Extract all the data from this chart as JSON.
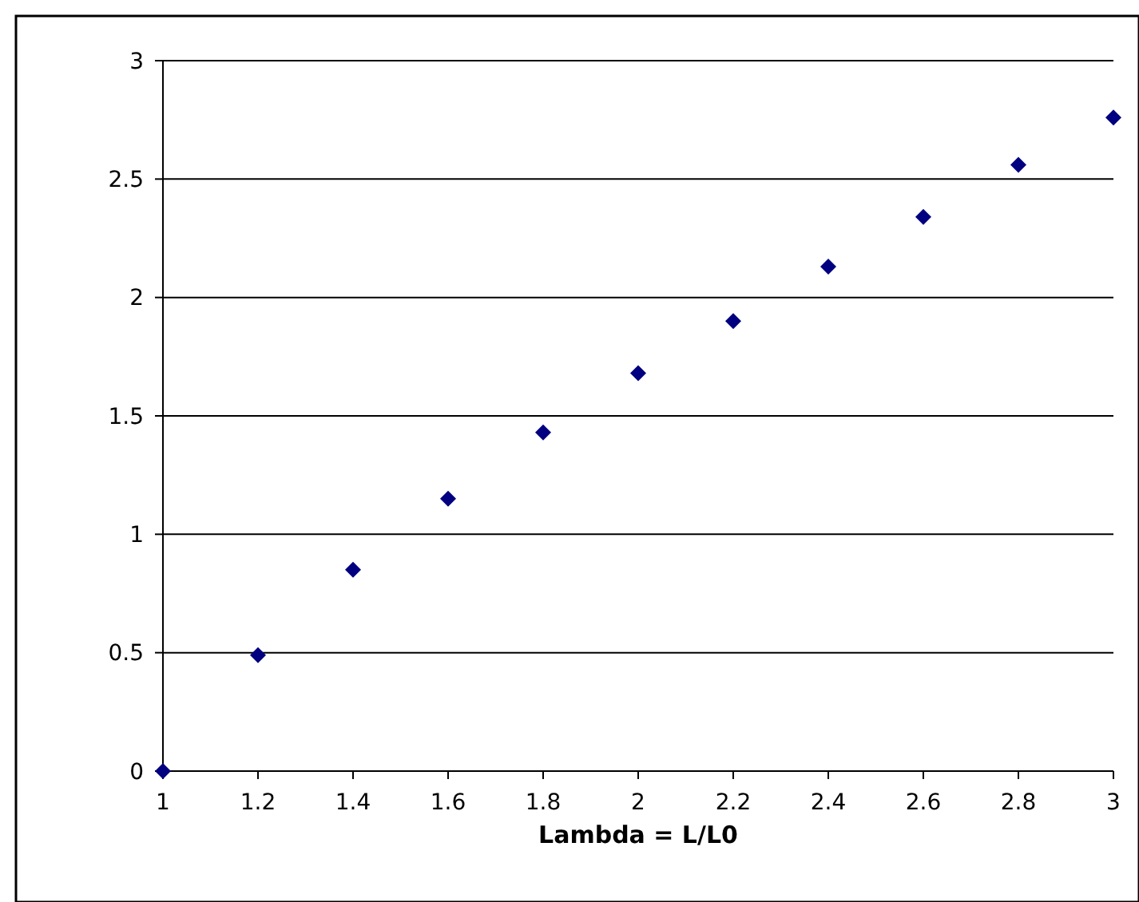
{
  "chart_data": {
    "type": "scatter",
    "xlabel": "Lambda = L/L0",
    "x": [
      1,
      1.2,
      1.4,
      1.6,
      1.8,
      2,
      2.2,
      2.4,
      2.6,
      2.8,
      3
    ],
    "series": [
      {
        "color": "#000080",
        "values": [
          0,
          0.49,
          0.85,
          1.15,
          1.43,
          1.68,
          1.9,
          2.13,
          2.34,
          2.56,
          2.76
        ]
      }
    ],
    "xlim": [
      1,
      3
    ],
    "xticks": [
      1,
      1.2,
      1.4,
      1.6,
      1.8,
      2,
      2.2,
      2.4,
      2.6,
      2.8,
      3
    ],
    "ylim": [
      0,
      3
    ],
    "yticks": [
      0,
      0.5,
      1,
      1.5,
      2,
      2.5,
      3
    ],
    "grid": "y",
    "marker": "diamond"
  }
}
